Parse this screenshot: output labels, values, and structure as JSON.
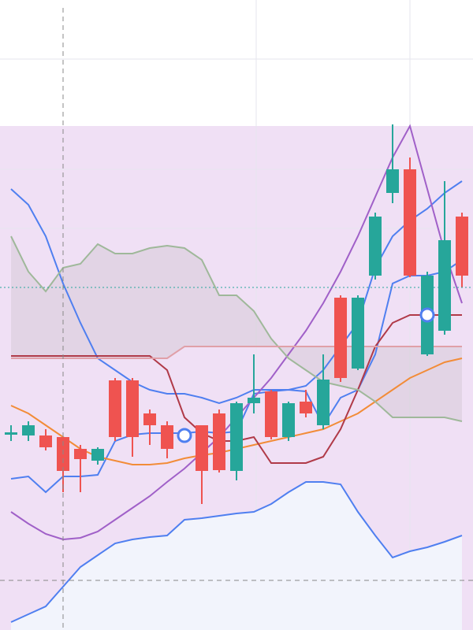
{
  "chart_data": {
    "type": "candlestick",
    "categories": [
      null,
      null,
      null,
      null,
      null,
      null,
      null,
      null,
      null,
      null,
      null,
      null,
      null,
      null,
      null,
      null,
      null,
      null,
      null,
      null,
      null,
      null,
      null,
      null,
      null,
      null,
      null
    ],
    "open": [
      248,
      247,
      247,
      245,
      230,
      215,
      317,
      317,
      275,
      260,
      null,
      260,
      275,
      202,
      288,
      303,
      245,
      290,
      260,
      422,
      332,
      450,
      555,
      585,
      350,
      380,
      525
    ],
    "high": [
      260,
      265,
      255,
      245,
      235,
      232,
      320,
      320,
      280,
      265,
      null,
      260,
      280,
      290,
      350,
      305,
      290,
      305,
      350,
      425,
      425,
      530,
      642,
      600,
      455,
      570,
      530
    ],
    "low": [
      240,
      240,
      228,
      175,
      175,
      210,
      240,
      220,
      235,
      218,
      null,
      160,
      200,
      190,
      275,
      242,
      240,
      270,
      255,
      315,
      330,
      445,
      542,
      448,
      348,
      375,
      435
    ],
    "close": [
      251,
      260,
      232,
      202,
      217,
      230,
      245,
      245,
      260,
      230,
      null,
      202,
      203,
      288,
      295,
      245,
      288,
      275,
      318,
      320,
      422,
      525,
      585,
      450,
      450,
      495,
      450
    ],
    "up_color": "#26a69a",
    "down_color": "#ef5350",
    "lines": [
      {
        "color": "#4f7ff0",
        "values": [
          560,
          540,
          500,
          440,
          390,
          345,
          330,
          315,
          305,
          300,
          300,
          295,
          288,
          295,
          305,
          305,
          305,
          310,
          330,
          360,
          390,
          460,
          500,
          520,
          535,
          555,
          570
        ]
      },
      {
        "color": "#4f7ff0",
        "values": [
          192,
          195,
          175,
          195,
          195,
          197,
          240,
          248,
          250,
          250,
          250,
          252,
          250,
          252,
          300,
          303,
          305,
          303,
          260,
          295,
          305,
          350,
          440,
          450,
          450,
          455,
          470
        ]
      },
      {
        "color": "#4f7ff0",
        "values": [
          10,
          20,
          30,
          55,
          80,
          95,
          110,
          115,
          118,
          120,
          140,
          142,
          145,
          148,
          150,
          160,
          175,
          188,
          188,
          185,
          150,
          120,
          92,
          100,
          105,
          112,
          120
        ]
      },
      {
        "color": "#f28c38",
        "values": [
          285,
          275,
          260,
          245,
          230,
          220,
          215,
          210,
          210,
          212,
          218,
          222,
          225,
          230,
          235,
          240,
          245,
          250,
          255,
          265,
          275,
          290,
          305,
          320,
          330,
          340,
          345
        ]
      },
      {
        "color": "#a060c8",
        "values": [
          150,
          135,
          122,
          115,
          117,
          125,
          140,
          155,
          170,
          188,
          205,
          225,
          245,
          270,
          295,
          320,
          350,
          380,
          415,
          455,
          500,
          550,
          600,
          640,
          560,
          480,
          415
        ]
      },
      {
        "color": "#b03a48",
        "values": [
          348,
          348,
          348,
          348,
          348,
          348,
          348,
          348,
          348,
          330,
          270,
          250,
          240,
          240,
          245,
          212,
          212,
          212,
          220,
          255,
          305,
          360,
          390,
          400,
          400,
          400,
          400
        ]
      },
      {
        "color": "#9fb89a",
        "values": [
          500,
          455,
          430,
          460,
          465,
          490,
          478,
          478,
          485,
          488,
          485,
          470,
          425,
          425,
          405,
          370,
          345,
          330,
          315,
          310,
          305,
          290,
          270,
          270,
          270,
          270,
          265
        ]
      },
      {
        "color": "#e0a0a8",
        "values": [
          345,
          345,
          345,
          345,
          345,
          345,
          345,
          345,
          345,
          345,
          360,
          360,
          360,
          360,
          360,
          360,
          360,
          360,
          360,
          360,
          360,
          360,
          360,
          360,
          360,
          360,
          360
        ]
      }
    ],
    "markers": {
      "color": "#4f7ff0",
      "values": [
        null,
        null,
        null,
        null,
        null,
        null,
        null,
        null,
        null,
        null,
        247,
        null,
        null,
        null,
        null,
        null,
        null,
        null,
        null,
        null,
        null,
        null,
        null,
        null,
        400,
        null,
        null
      ]
    },
    "ylim": [
      0,
      800
    ]
  }
}
